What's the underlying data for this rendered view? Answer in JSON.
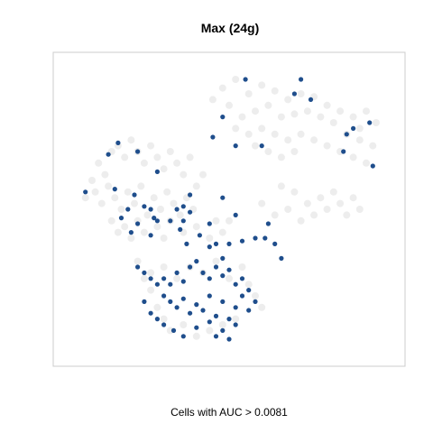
{
  "chart_data": {
    "type": "scatter",
    "title": "Max (24g)",
    "xlabel": "Cells with AUC > 0.0081",
    "ylabel": "",
    "xlim": [
      0,
      100
    ],
    "ylim": [
      0,
      100
    ],
    "grid": false,
    "legend": "none",
    "series": [
      {
        "name": "cells_below_threshold",
        "color": "#d6d6d6",
        "points": [
          [
            48,
            92
          ],
          [
            52,
            95
          ],
          [
            56,
            90
          ],
          [
            60,
            93
          ],
          [
            64,
            91
          ],
          [
            68,
            88
          ],
          [
            72,
            90
          ],
          [
            76,
            89
          ],
          [
            80,
            86
          ],
          [
            84,
            84
          ],
          [
            88,
            82
          ],
          [
            92,
            84
          ],
          [
            95,
            80
          ],
          [
            90,
            78
          ],
          [
            86,
            76
          ],
          [
            82,
            80
          ],
          [
            78,
            82
          ],
          [
            74,
            84
          ],
          [
            70,
            83
          ],
          [
            66,
            82
          ],
          [
            62,
            86
          ],
          [
            58,
            84
          ],
          [
            54,
            82
          ],
          [
            50,
            86
          ],
          [
            45,
            88
          ],
          [
            52,
            78
          ],
          [
            56,
            76
          ],
          [
            60,
            78
          ],
          [
            64,
            76
          ],
          [
            68,
            74
          ],
          [
            72,
            76
          ],
          [
            76,
            74
          ],
          [
            80,
            72
          ],
          [
            84,
            70
          ],
          [
            88,
            68
          ],
          [
            92,
            66
          ],
          [
            94,
            72
          ],
          [
            90,
            74
          ],
          [
            70,
            70
          ],
          [
            66,
            68
          ],
          [
            62,
            70
          ],
          [
            58,
            72
          ],
          [
            8,
            60
          ],
          [
            10,
            66
          ],
          [
            12,
            62
          ],
          [
            14,
            70
          ],
          [
            16,
            72
          ],
          [
            18,
            68
          ],
          [
            20,
            74
          ],
          [
            22,
            70
          ],
          [
            24,
            66
          ],
          [
            26,
            72
          ],
          [
            28,
            68
          ],
          [
            30,
            64
          ],
          [
            32,
            70
          ],
          [
            34,
            66
          ],
          [
            36,
            62
          ],
          [
            38,
            68
          ],
          [
            40,
            58
          ],
          [
            42,
            62
          ],
          [
            6,
            54
          ],
          [
            9,
            56
          ],
          [
            11,
            52
          ],
          [
            13,
            58
          ],
          [
            15,
            54
          ],
          [
            17,
            50
          ],
          [
            19,
            56
          ],
          [
            21,
            52
          ],
          [
            23,
            58
          ],
          [
            25,
            48
          ],
          [
            27,
            54
          ],
          [
            29,
            50
          ],
          [
            31,
            56
          ],
          [
            33,
            52
          ],
          [
            35,
            48
          ],
          [
            37,
            54
          ],
          [
            39,
            50
          ],
          [
            14,
            46
          ],
          [
            16,
            42
          ],
          [
            18,
            44
          ],
          [
            20,
            40
          ],
          [
            22,
            46
          ],
          [
            24,
            42
          ],
          [
            28,
            44
          ],
          [
            30,
            40
          ],
          [
            32,
            46
          ],
          [
            36,
            42
          ],
          [
            40,
            44
          ],
          [
            44,
            40
          ],
          [
            46,
            46
          ],
          [
            48,
            42
          ],
          [
            50,
            46
          ],
          [
            60,
            52
          ],
          [
            64,
            48
          ],
          [
            68,
            50
          ],
          [
            72,
            46
          ],
          [
            74,
            52
          ],
          [
            76,
            48
          ],
          [
            78,
            54
          ],
          [
            80,
            50
          ],
          [
            82,
            56
          ],
          [
            84,
            52
          ],
          [
            86,
            48
          ],
          [
            88,
            54
          ],
          [
            90,
            50
          ],
          [
            70,
            56
          ],
          [
            66,
            58
          ],
          [
            22,
            32
          ],
          [
            26,
            28
          ],
          [
            30,
            30
          ],
          [
            34,
            26
          ],
          [
            38,
            30
          ],
          [
            42,
            28
          ],
          [
            46,
            32
          ],
          [
            50,
            26
          ],
          [
            54,
            30
          ],
          [
            56,
            24
          ],
          [
            58,
            20
          ],
          [
            60,
            16
          ],
          [
            28,
            16
          ],
          [
            30,
            12
          ],
          [
            32,
            8
          ],
          [
            36,
            10
          ],
          [
            40,
            6
          ],
          [
            44,
            8
          ],
          [
            48,
            10
          ],
          [
            52,
            12
          ],
          [
            26,
            22
          ],
          [
            24,
            26
          ]
        ]
      },
      {
        "name": "cells_above_threshold",
        "color": "#1f4e8c",
        "points": [
          [
            55,
            95
          ],
          [
            72,
            95
          ],
          [
            75,
            88
          ],
          [
            70,
            90
          ],
          [
            48,
            82
          ],
          [
            45,
            75
          ],
          [
            52,
            72
          ],
          [
            60,
            72
          ],
          [
            85,
            70
          ],
          [
            86,
            76
          ],
          [
            88,
            78
          ],
          [
            94,
            65
          ],
          [
            93,
            80
          ],
          [
            16,
            73
          ],
          [
            22,
            70
          ],
          [
            13,
            69
          ],
          [
            28,
            63
          ],
          [
            6,
            56
          ],
          [
            15,
            57
          ],
          [
            21,
            55
          ],
          [
            24,
            51
          ],
          [
            19,
            50
          ],
          [
            26,
            50
          ],
          [
            27,
            47
          ],
          [
            34,
            50
          ],
          [
            36,
            51
          ],
          [
            38,
            49
          ],
          [
            38,
            55
          ],
          [
            48,
            54
          ],
          [
            52,
            48
          ],
          [
            44,
            45
          ],
          [
            36,
            46
          ],
          [
            32,
            46
          ],
          [
            28,
            46
          ],
          [
            17,
            47
          ],
          [
            22,
            45
          ],
          [
            20,
            42
          ],
          [
            26,
            41
          ],
          [
            35,
            43
          ],
          [
            37,
            38
          ],
          [
            41,
            41
          ],
          [
            44,
            37
          ],
          [
            46,
            38
          ],
          [
            48,
            33
          ],
          [
            50,
            38
          ],
          [
            54,
            39
          ],
          [
            58,
            40
          ],
          [
            61,
            40
          ],
          [
            62,
            45
          ],
          [
            64,
            38
          ],
          [
            66,
            33
          ],
          [
            22,
            30
          ],
          [
            24,
            28
          ],
          [
            26,
            26
          ],
          [
            28,
            24
          ],
          [
            30,
            26
          ],
          [
            32,
            24
          ],
          [
            34,
            28
          ],
          [
            36,
            25
          ],
          [
            38,
            30
          ],
          [
            40,
            32
          ],
          [
            42,
            28
          ],
          [
            44,
            26
          ],
          [
            46,
            30
          ],
          [
            48,
            27
          ],
          [
            50,
            29
          ],
          [
            52,
            24
          ],
          [
            54,
            26
          ],
          [
            56,
            22
          ],
          [
            30,
            20
          ],
          [
            32,
            18
          ],
          [
            34,
            16
          ],
          [
            36,
            19
          ],
          [
            38,
            14
          ],
          [
            40,
            17
          ],
          [
            42,
            15
          ],
          [
            44,
            20
          ],
          [
            46,
            13
          ],
          [
            48,
            18
          ],
          [
            50,
            12
          ],
          [
            52,
            16
          ],
          [
            54,
            20
          ],
          [
            56,
            15
          ],
          [
            58,
            18
          ],
          [
            30,
            10
          ],
          [
            33,
            8
          ],
          [
            36,
            6
          ],
          [
            40,
            9
          ],
          [
            44,
            11
          ],
          [
            48,
            8
          ],
          [
            52,
            10
          ],
          [
            26,
            14
          ],
          [
            28,
            12
          ],
          [
            46,
            6
          ],
          [
            50,
            5
          ],
          [
            24,
            18
          ]
        ]
      }
    ]
  }
}
